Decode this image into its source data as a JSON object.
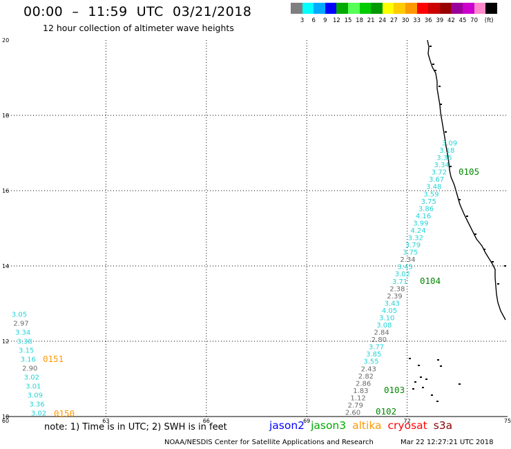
{
  "header": {
    "title": "00:00  –  11:59  UTC  03/21/2018",
    "subtitle": "12 hour collection of altimeter wave heights"
  },
  "legend": {
    "unit": "(ft)",
    "colors": [
      "#7f7f7f",
      "#00ffff",
      "#00aaff",
      "#0000ff",
      "#00aa00",
      "#55ff55",
      "#00cc00",
      "#009900",
      "#ffff00",
      "#ffcc00",
      "#ff9900",
      "#ff0000",
      "#cc0000",
      "#990000",
      "#990099",
      "#cc00cc",
      "#ff88cc",
      "#000000"
    ],
    "labels": [
      "3",
      "6",
      "9",
      "12",
      "15",
      "18",
      "21",
      "24",
      "27",
      "30",
      "33",
      "36",
      "39",
      "42",
      "45",
      "70"
    ]
  },
  "map": {
    "x_ticks": [
      "60",
      "63",
      "66",
      "69",
      "72",
      "75"
    ],
    "y_ticks": [
      "10",
      "12",
      "14",
      "16",
      "18",
      "20"
    ],
    "x_range": [
      60,
      75
    ],
    "y_range": [
      10,
      20
    ]
  },
  "tracks": [
    {
      "pass": "0105",
      "pass_color": "#008800"
    },
    {
      "pass": "0104",
      "pass_color": "#008800"
    },
    {
      "pass": "0103",
      "pass_color": "#008800"
    },
    {
      "pass": "0102",
      "pass_color": "#008800"
    },
    {
      "pass": "0151",
      "pass_color": "#ff9900"
    },
    {
      "pass": "0150",
      "pass_color": "#ff9900"
    }
  ],
  "wave_labels": {
    "east": [
      "3.09",
      "3.18",
      "3.35",
      "3.34",
      "3.72",
      "3.67",
      "3.48",
      "3.59",
      "3.75",
      "3.86",
      "4.16",
      "3.99",
      "4.24",
      "3.32",
      "3.79",
      "3.75",
      "2.34",
      "3.45",
      "3.02",
      "3.71",
      "2.38",
      "2.39",
      "3.43",
      "4.05",
      "3.10",
      "3.08",
      "2.84",
      "2.80",
      "3.77",
      "3.85",
      "3.55",
      "2.43",
      "2.82",
      "2.86",
      "1.83",
      "1.12",
      "2.79",
      "2.60"
    ],
    "west": [
      "3.05",
      "2.97",
      "3.34",
      "3.38",
      "3.15",
      "3.16",
      "2.90",
      "3.02",
      "3.01",
      "3.09",
      "3.36",
      "3.02"
    ]
  },
  "footer": {
    "note": "note: 1) Time is in UTC; 2) SWH is in feet",
    "satellites": [
      {
        "name": "jason2",
        "color": "#0000ff"
      },
      {
        "name": "jason3",
        "color": "#00aa00"
      },
      {
        "name": "altika",
        "color": "#ff9900"
      },
      {
        "name": "cryosat",
        "color": "#ff0000"
      },
      {
        "name": "s3a",
        "color": "#880000"
      }
    ],
    "credit": "NOAA/NESDIS Center for Satellite Applications and Research",
    "timestamp": "Mar 22 12:27:21 UTC 2018"
  }
}
